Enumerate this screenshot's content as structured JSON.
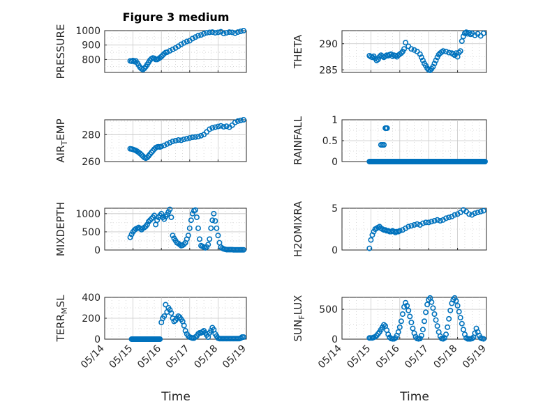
{
  "figure": {
    "title": "Figure 3 medium",
    "marker_color": "#0072BD",
    "x_axis": {
      "label": "Time",
      "ticks": [
        "05/14",
        "05/15",
        "05/16",
        "05/17",
        "05/18",
        "05/19"
      ],
      "range_days": [
        14,
        19
      ]
    }
  },
  "chart_data": [
    {
      "type": "scatter",
      "ylabel": "PRESSURE",
      "ylim": [
        710,
        1000
      ],
      "yticks": [
        800,
        900,
        1000
      ],
      "ytick_labels": [
        "800",
        "900",
        "1000"
      ],
      "grid": true,
      "x": [
        14.9,
        14.95,
        15.0,
        15.05,
        15.1,
        15.15,
        15.2,
        15.25,
        15.3,
        15.35,
        15.4,
        15.45,
        15.5,
        15.55,
        15.6,
        15.65,
        15.7,
        15.75,
        15.8,
        15.85,
        15.9,
        15.95,
        16.0,
        16.05,
        16.1,
        16.15,
        16.2,
        16.3,
        16.4,
        16.5,
        16.6,
        16.7,
        16.8,
        16.9,
        17.0,
        17.1,
        17.2,
        17.3,
        17.4,
        17.5,
        17.6,
        17.7,
        17.8,
        17.9,
        18.0,
        18.1,
        18.2,
        18.3,
        18.4,
        18.5,
        18.6,
        18.7,
        18.8,
        18.9
      ],
      "y": [
        790,
        788,
        793,
        785,
        790,
        775,
        760,
        745,
        735,
        730,
        738,
        750,
        765,
        780,
        795,
        805,
        810,
        808,
        800,
        800,
        805,
        812,
        820,
        830,
        840,
        848,
        850,
        860,
        870,
        880,
        892,
        905,
        915,
        925,
        930,
        945,
        955,
        965,
        970,
        978,
        985,
        988,
        990,
        985,
        988,
        992,
        980,
        985,
        990,
        988,
        982,
        990,
        995,
        1000
      ]
    },
    {
      "type": "scatter",
      "ylabel": "THETA",
      "ylim": [
        284.5,
        292.5
      ],
      "yticks": [
        285,
        290
      ],
      "ytick_labels": [
        "285",
        "290"
      ],
      "grid": true,
      "x": [
        14.95,
        15.0,
        15.05,
        15.1,
        15.15,
        15.2,
        15.25,
        15.3,
        15.35,
        15.4,
        15.45,
        15.5,
        15.55,
        15.6,
        15.65,
        15.7,
        15.75,
        15.8,
        15.85,
        15.9,
        15.95,
        16.0,
        16.05,
        16.1,
        16.15,
        16.2,
        16.3,
        16.4,
        16.5,
        16.6,
        16.7,
        16.75,
        16.8,
        16.85,
        16.9,
        16.95,
        17.0,
        17.05,
        17.1,
        17.15,
        17.2,
        17.25,
        17.3,
        17.35,
        17.4,
        17.45,
        17.5,
        17.6,
        17.7,
        17.8,
        17.85,
        17.9,
        17.95,
        18.0,
        18.05,
        18.1,
        18.15,
        18.2,
        18.25,
        18.3,
        18.35,
        18.4,
        18.45,
        18.5,
        18.6,
        18.7,
        18.8,
        18.9
      ],
      "y": [
        287.7,
        287.5,
        287.4,
        287.6,
        287.2,
        286.8,
        287.0,
        287.5,
        287.8,
        287.6,
        287.4,
        287.6,
        287.8,
        287.7,
        287.9,
        288.0,
        287.6,
        287.8,
        287.7,
        287.5,
        287.8,
        288.0,
        288.2,
        288.5,
        289.0,
        290.2,
        289.5,
        289.0,
        288.8,
        288.5,
        288.0,
        287.4,
        286.8,
        286.2,
        285.8,
        285.3,
        285.0,
        284.9,
        285.2,
        285.6,
        286.2,
        286.8,
        287.4,
        287.9,
        288.2,
        288.4,
        288.6,
        288.5,
        288.3,
        288.2,
        288.0,
        287.8,
        288.2,
        287.5,
        288.3,
        288.6,
        290.5,
        291.4,
        292.0,
        292.2,
        291.9,
        292.1,
        291.8,
        292.0,
        291.6,
        291.9,
        291.5,
        292.0
      ]
    },
    {
      "type": "scatter",
      "ylabel": "AIR_TEMP",
      "ylim": [
        260,
        291
      ],
      "yticks": [
        260,
        280
      ],
      "ytick_labels": [
        "260",
        "280"
      ],
      "grid": true,
      "x": [
        14.9,
        14.95,
        15.0,
        15.05,
        15.1,
        15.15,
        15.2,
        15.25,
        15.3,
        15.35,
        15.4,
        15.45,
        15.5,
        15.55,
        15.6,
        15.65,
        15.7,
        15.75,
        15.8,
        15.85,
        15.9,
        15.95,
        16.0,
        16.1,
        16.2,
        16.3,
        16.4,
        16.5,
        16.6,
        16.7,
        16.8,
        16.9,
        17.0,
        17.1,
        17.2,
        17.3,
        17.4,
        17.5,
        17.6,
        17.7,
        17.8,
        17.9,
        18.0,
        18.1,
        18.2,
        18.3,
        18.4,
        18.5,
        18.6,
        18.7,
        18.8,
        18.9
      ],
      "y": [
        269.5,
        269.3,
        269.0,
        268.6,
        268.2,
        267.5,
        266.8,
        266.0,
        265.0,
        264.0,
        263.0,
        262.5,
        263.0,
        264.2,
        265.5,
        266.8,
        268.0,
        269.2,
        270.2,
        270.8,
        271.0,
        270.8,
        271.2,
        272.0,
        273.0,
        274.0,
        275.0,
        275.5,
        276.0,
        275.8,
        276.5,
        277.0,
        277.5,
        278.0,
        278.2,
        278.5,
        279.2,
        280.0,
        282.0,
        284.0,
        285.0,
        285.5,
        286.0,
        286.5,
        285.8,
        286.2,
        285.5,
        287.0,
        289.0,
        290.0,
        290.5,
        291.0
      ]
    },
    {
      "type": "scatter",
      "ylabel": "RAINFALL",
      "ylim": [
        0,
        1
      ],
      "yticks": [
        0,
        0.5,
        1
      ],
      "ytick_labels": [
        "0",
        "0.5",
        "1"
      ],
      "grid": true,
      "points": [
        [
          15.35,
          0.4
        ],
        [
          15.4,
          0.4
        ],
        [
          15.45,
          0.4
        ],
        [
          15.5,
          0.8
        ],
        [
          15.53,
          0.8
        ],
        [
          15.56,
          0.8
        ]
      ],
      "zero_run_x": [
        14.95,
        18.95
      ]
    },
    {
      "type": "scatter",
      "ylabel": "MIXDEPTH",
      "ylim": [
        0,
        1150
      ],
      "yticks": [
        0,
        500,
        1000
      ],
      "ytick_labels": [
        "0",
        "500",
        "1000"
      ],
      "grid": true,
      "x": [
        14.9,
        14.95,
        15.0,
        15.05,
        15.1,
        15.15,
        15.2,
        15.25,
        15.3,
        15.35,
        15.4,
        15.45,
        15.5,
        15.55,
        15.6,
        15.65,
        15.7,
        15.75,
        15.8,
        15.85,
        15.9,
        15.95,
        16.0,
        16.05,
        16.1,
        16.15,
        16.2,
        16.25,
        16.3,
        16.35,
        16.4,
        16.45,
        16.5,
        16.55,
        16.6,
        16.65,
        16.7,
        16.75,
        16.8,
        16.85,
        16.9,
        16.95,
        17.0,
        17.05,
        17.1,
        17.15,
        17.2,
        17.25,
        17.3,
        17.35,
        17.4,
        17.45,
        17.5,
        17.55,
        17.6,
        17.65,
        17.7,
        17.75,
        17.8,
        17.85,
        17.9,
        17.95,
        18.0,
        18.05,
        18.1,
        18.15,
        18.2,
        18.25,
        18.3,
        18.35,
        18.4,
        18.45,
        18.5,
        18.55,
        18.6,
        18.65,
        18.7,
        18.75,
        18.8,
        18.85,
        18.9
      ],
      "y": [
        350,
        430,
        500,
        550,
        580,
        600,
        620,
        590,
        560,
        600,
        620,
        650,
        700,
        780,
        820,
        860,
        900,
        950,
        700,
        820,
        900,
        950,
        1000,
        900,
        850,
        920,
        980,
        1050,
        1120,
        900,
        400,
        320,
        260,
        200,
        180,
        150,
        120,
        130,
        160,
        200,
        300,
        400,
        600,
        820,
        1000,
        1080,
        1100,
        900,
        600,
        300,
        120,
        100,
        80,
        60,
        80,
        150,
        300,
        600,
        820,
        1000,
        800,
        600,
        400,
        200,
        80,
        50,
        30,
        20,
        10,
        10,
        10,
        10,
        10,
        5,
        5,
        5,
        5,
        5,
        5,
        5,
        5
      ]
    },
    {
      "type": "scatter",
      "ylabel": "H2OMIXRA",
      "ylim": [
        0,
        5
      ],
      "yticks": [
        0,
        5
      ],
      "ytick_labels": [
        "0",
        "5"
      ],
      "grid": true,
      "x": [
        14.95,
        15.0,
        15.05,
        15.1,
        15.15,
        15.2,
        15.25,
        15.3,
        15.35,
        15.4,
        15.45,
        15.5,
        15.55,
        15.6,
        15.65,
        15.7,
        15.75,
        15.8,
        15.85,
        15.9,
        15.95,
        16.0,
        16.1,
        16.2,
        16.3,
        16.4,
        16.5,
        16.6,
        16.7,
        16.8,
        16.9,
        17.0,
        17.1,
        17.2,
        17.3,
        17.4,
        17.5,
        17.6,
        17.7,
        17.8,
        17.9,
        18.0,
        18.1,
        18.2,
        18.3,
        18.4,
        18.5,
        18.6,
        18.7,
        18.8,
        18.9
      ],
      "y": [
        0.2,
        1.2,
        1.8,
        2.2,
        2.5,
        2.6,
        2.7,
        2.8,
        2.6,
        2.5,
        2.4,
        2.4,
        2.3,
        2.3,
        2.2,
        2.2,
        2.3,
        2.2,
        2.1,
        2.2,
        2.2,
        2.3,
        2.4,
        2.6,
        2.8,
        2.9,
        3.0,
        3.1,
        3.0,
        3.2,
        3.3,
        3.3,
        3.4,
        3.5,
        3.6,
        3.5,
        3.6,
        3.8,
        3.9,
        4.0,
        4.2,
        4.3,
        4.5,
        4.8,
        4.6,
        4.3,
        4.2,
        4.4,
        4.5,
        4.6,
        4.7
      ]
    },
    {
      "type": "scatter",
      "ylabel": "TERR_MSL",
      "ylim": [
        0,
        400
      ],
      "yticks": [
        0,
        200,
        400
      ],
      "ytick_labels": [
        "0",
        "200",
        "400"
      ],
      "grid": true,
      "x": [
        16.0,
        16.05,
        16.1,
        16.15,
        16.2,
        16.25,
        16.3,
        16.35,
        16.4,
        16.45,
        16.5,
        16.55,
        16.6,
        16.65,
        16.7,
        16.75,
        16.8,
        16.85,
        16.9,
        16.95,
        17.0,
        17.05,
        17.1,
        17.15,
        17.2,
        17.25,
        17.3,
        17.35,
        17.4,
        17.45,
        17.5,
        17.55,
        17.6,
        17.65,
        17.7,
        17.75,
        17.8,
        17.85,
        17.9,
        17.95,
        18.0,
        18.05,
        18.1,
        18.15,
        18.2,
        18.25,
        18.3,
        18.35,
        18.4,
        18.45,
        18.5,
        18.55,
        18.6,
        18.65,
        18.7,
        18.75,
        18.8,
        18.85,
        18.9
      ],
      "y": [
        160,
        200,
        220,
        330,
        260,
        300,
        280,
        250,
        200,
        170,
        180,
        200,
        220,
        210,
        190,
        170,
        130,
        80,
        50,
        30,
        20,
        15,
        10,
        10,
        20,
        30,
        50,
        60,
        60,
        70,
        80,
        60,
        40,
        20,
        60,
        80,
        110,
        90,
        50,
        30,
        10,
        5,
        5,
        5,
        5,
        5,
        5,
        5,
        5,
        5,
        5,
        5,
        5,
        5,
        5,
        5,
        10,
        20,
        20
      ],
      "zero_run_x": [
        14.95,
        15.95
      ]
    },
    {
      "type": "scatter",
      "ylabel": "SUN_FLUX",
      "ylim": [
        0,
        700
      ],
      "yticks": [
        0,
        500
      ],
      "ytick_labels": [
        "0",
        "500"
      ],
      "grid": true,
      "x": [
        14.95,
        15.0,
        15.05,
        15.1,
        15.15,
        15.2,
        15.25,
        15.3,
        15.35,
        15.4,
        15.45,
        15.5,
        15.55,
        15.6,
        15.65,
        15.7,
        15.75,
        15.8,
        15.85,
        15.9,
        15.95,
        16.0,
        16.05,
        16.1,
        16.15,
        16.2,
        16.25,
        16.3,
        16.35,
        16.4,
        16.45,
        16.5,
        16.55,
        16.6,
        16.65,
        16.7,
        16.75,
        16.8,
        16.85,
        16.9,
        16.95,
        17.0,
        17.05,
        17.1,
        17.15,
        17.2,
        17.25,
        17.3,
        17.35,
        17.4,
        17.45,
        17.5,
        17.55,
        17.6,
        17.65,
        17.7,
        17.75,
        17.8,
        17.85,
        17.9,
        17.95,
        18.0,
        18.05,
        18.1,
        18.15,
        18.2,
        18.25,
        18.3,
        18.35,
        18.4,
        18.45,
        18.5,
        18.55,
        18.6,
        18.65,
        18.7,
        18.75,
        18.8,
        18.85,
        18.9
      ],
      "y": [
        20,
        20,
        20,
        30,
        40,
        60,
        90,
        120,
        160,
        200,
        240,
        220,
        150,
        80,
        30,
        10,
        5,
        5,
        20,
        60,
        120,
        200,
        300,
        420,
        540,
        610,
        560,
        480,
        380,
        280,
        180,
        100,
        40,
        10,
        5,
        10,
        60,
        160,
        300,
        450,
        580,
        660,
        690,
        620,
        520,
        420,
        320,
        220,
        120,
        50,
        10,
        5,
        20,
        80,
        200,
        340,
        480,
        600,
        660,
        690,
        640,
        560,
        460,
        360,
        260,
        160,
        80,
        20,
        5,
        5,
        5,
        10,
        30,
        100,
        180,
        120,
        60,
        20,
        10,
        5
      ]
    }
  ]
}
